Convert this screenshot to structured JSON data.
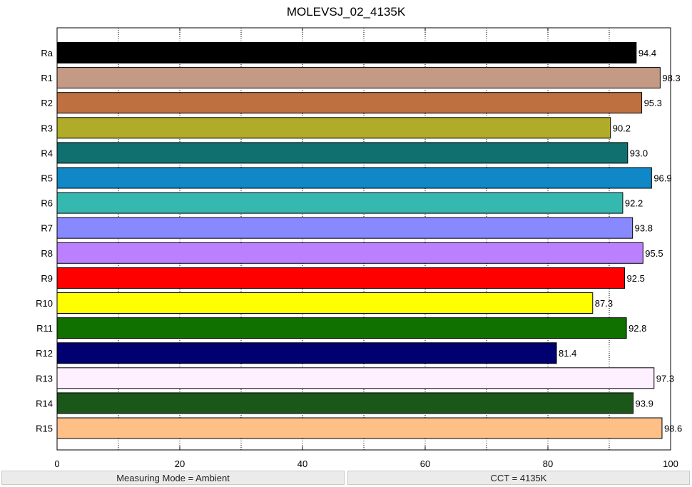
{
  "chart_data": {
    "type": "bar",
    "orientation": "horizontal",
    "title": "MOLEVSJ_02_4135K",
    "xlabel": "",
    "ylabel": "",
    "xlim": [
      0,
      100
    ],
    "x_ticks": [
      0,
      20,
      40,
      60,
      80,
      100
    ],
    "grid": "vertical dotted",
    "categories": [
      "Ra",
      "R1",
      "R2",
      "R3",
      "R4",
      "R5",
      "R6",
      "R7",
      "R8",
      "R9",
      "R10",
      "R11",
      "R12",
      "R13",
      "R14",
      "R15"
    ],
    "values": [
      94.4,
      98.3,
      95.3,
      90.2,
      93.0,
      96.9,
      92.2,
      93.8,
      95.5,
      92.5,
      87.3,
      92.8,
      81.4,
      97.3,
      93.9,
      98.6
    ],
    "value_labels": [
      "94.4",
      "98.3",
      "95.3",
      "90.2",
      "93.0",
      "96.9",
      "92.2",
      "93.8",
      "95.5",
      "92.5",
      "87.3",
      "92.8",
      "81.4",
      "97.3",
      "93.9",
      "98.6"
    ],
    "colors": [
      "#000000",
      "#c49a85",
      "#bf7040",
      "#b0ac2a",
      "#107070",
      "#1088c8",
      "#35b8b0",
      "#8888ff",
      "#bb80ff",
      "#ff0000",
      "#ffff00",
      "#107000",
      "#000070",
      "#fff0ff",
      "#1a5718",
      "#ffc088"
    ]
  },
  "status": {
    "measuring_mode": "Measuring Mode = Ambient",
    "cct": "CCT = 4135K"
  }
}
